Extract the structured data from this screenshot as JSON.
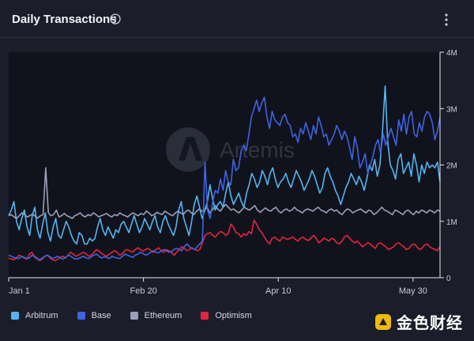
{
  "header": {
    "title": "Daily Transactions"
  },
  "watermark": {
    "text": "Artemis"
  },
  "brand": {
    "text": "金色财经",
    "color": "#f0b90b"
  },
  "chart_data": {
    "type": "line",
    "title": "Daily Transactions",
    "xlabel": "",
    "ylabel": "",
    "x_ticks": [
      "Jan 1",
      "Feb 20",
      "Apr 10",
      "May 30"
    ],
    "x_tick_days": [
      0,
      50,
      100,
      150
    ],
    "x_range": [
      0,
      160
    ],
    "y_ticks": [
      "0",
      "1M",
      "2M",
      "3M",
      "4M"
    ],
    "y_tick_values": [
      0,
      1,
      2,
      3,
      4
    ],
    "ylim": [
      0,
      4
    ],
    "y_unit": "millions",
    "grid": false,
    "legend_position": "bottom-left",
    "series": [
      {
        "name": "Arbitrum",
        "color": "#55b4f0",
        "values": [
          1.1,
          1.2,
          1.35,
          1.0,
          0.85,
          1.05,
          1.2,
          0.9,
          0.75,
          1.1,
          1.25,
          0.85,
          0.7,
          0.95,
          1.15,
          0.8,
          0.65,
          0.9,
          1.05,
          0.75,
          0.7,
          0.85,
          1.0,
          0.9,
          0.75,
          0.65,
          0.6,
          0.8,
          0.75,
          0.6,
          0.6,
          0.7,
          0.65,
          0.7,
          0.9,
          1.05,
          0.85,
          0.75,
          0.9,
          0.8,
          0.7,
          0.85,
          0.8,
          0.95,
          1.0,
          0.9,
          0.8,
          0.95,
          1.1,
          0.95,
          0.8,
          0.9,
          1.05,
          0.95,
          0.85,
          1.0,
          1.1,
          0.9,
          0.8,
          1.0,
          1.1,
          0.95,
          0.85,
          0.75,
          0.9,
          1.2,
          1.35,
          1.05,
          0.9,
          0.75,
          1.0,
          1.3,
          1.45,
          1.25,
          1.05,
          1.2,
          1.35,
          1.65,
          1.4,
          1.2,
          1.3,
          1.35,
          1.25,
          1.5,
          1.7,
          1.45,
          1.3,
          1.4,
          1.5,
          1.35,
          1.25,
          1.5,
          1.65,
          1.85,
          1.75,
          1.6,
          1.7,
          1.9,
          1.8,
          1.65,
          1.85,
          1.95,
          1.75,
          1.6,
          1.7,
          1.75,
          1.85,
          1.7,
          1.6,
          1.75,
          1.9,
          1.8,
          1.7,
          1.55,
          1.65,
          1.75,
          1.9,
          1.8,
          1.65,
          1.5,
          1.6,
          1.85,
          1.95,
          1.8,
          1.7,
          1.55,
          1.45,
          1.3,
          1.45,
          1.6,
          1.7,
          1.85,
          1.75,
          1.65,
          1.8,
          1.7,
          1.55,
          1.75,
          2.0,
          1.9,
          2.1,
          1.8,
          2.0,
          2.6,
          3.4,
          2.4,
          2.0,
          1.9,
          1.75,
          2.1,
          2.2,
          1.85,
          1.95,
          2.05,
          1.8,
          2.2,
          2.0,
          1.7,
          2.0,
          1.85,
          2.05,
          1.95,
          2.0,
          1.95,
          2.05,
          1.7
        ]
      },
      {
        "name": "Base",
        "color": "#3f63e3",
        "values": [
          0.4,
          0.38,
          0.36,
          0.35,
          0.34,
          0.38,
          0.36,
          0.34,
          0.35,
          0.4,
          0.37,
          0.33,
          0.32,
          0.35,
          0.38,
          0.4,
          0.37,
          0.34,
          0.36,
          0.38,
          0.35,
          0.33,
          0.36,
          0.4,
          0.38,
          0.35,
          0.33,
          0.34,
          0.36,
          0.38,
          0.35,
          0.34,
          0.37,
          0.4,
          0.42,
          0.38,
          0.35,
          0.37,
          0.36,
          0.34,
          0.38,
          0.36,
          0.35,
          0.34,
          0.38,
          0.42,
          0.4,
          0.38,
          0.36,
          0.4,
          0.42,
          0.45,
          0.43,
          0.4,
          0.42,
          0.45,
          0.48,
          0.45,
          0.44,
          0.47,
          0.5,
          0.48,
          0.45,
          0.46,
          0.5,
          0.52,
          0.5,
          0.48,
          0.55,
          0.6,
          0.55,
          0.52,
          0.5,
          0.55,
          0.6,
          0.65,
          2.05,
          1.2,
          1.05,
          1.35,
          1.55,
          1.5,
          1.75,
          1.55,
          1.9,
          1.7,
          1.65,
          2.1,
          1.9,
          1.95,
          2.25,
          2.35,
          2.25,
          2.55,
          2.85,
          3.0,
          3.15,
          2.95,
          3.1,
          3.2,
          2.85,
          2.65,
          2.95,
          2.8,
          2.75,
          2.7,
          2.85,
          2.9,
          2.75,
          2.7,
          2.5,
          2.55,
          2.4,
          2.65,
          2.55,
          2.75,
          2.6,
          2.45,
          2.7,
          2.55,
          2.85,
          2.7,
          2.5,
          2.55,
          2.35,
          2.45,
          2.55,
          2.7,
          2.6,
          2.45,
          2.6,
          2.5,
          2.3,
          2.1,
          2.5,
          2.3,
          1.95,
          2.05,
          2.2,
          1.85,
          2.0,
          2.15,
          2.35,
          2.45,
          2.2,
          2.55,
          2.35,
          2.5,
          2.65,
          2.5,
          2.35,
          2.8,
          2.6,
          2.9,
          2.55,
          2.85,
          2.95,
          2.55,
          2.5,
          2.75,
          2.6,
          2.85,
          2.95,
          2.9,
          2.75,
          2.45,
          2.6,
          2.85
        ]
      },
      {
        "name": "Ethereum",
        "color": "#9aa0b8",
        "values": [
          1.1,
          1.12,
          1.08,
          1.05,
          1.1,
          1.15,
          1.12,
          1.08,
          1.1,
          1.13,
          1.09,
          1.06,
          1.1,
          1.12,
          1.95,
          1.15,
          1.1,
          1.12,
          1.2,
          1.08,
          1.1,
          1.14,
          1.1,
          1.08,
          1.05,
          1.1,
          1.12,
          1.15,
          1.1,
          1.08,
          1.12,
          1.1,
          1.15,
          1.12,
          1.08,
          1.1,
          1.12,
          1.14,
          1.1,
          1.08,
          1.12,
          1.1,
          1.15,
          1.12,
          1.1,
          1.08,
          1.12,
          1.15,
          1.12,
          1.1,
          1.14,
          1.12,
          1.18,
          1.15,
          1.1,
          1.12,
          1.16,
          1.14,
          1.12,
          1.18,
          1.15,
          1.12,
          1.1,
          1.15,
          1.18,
          1.15,
          1.12,
          1.18,
          1.2,
          1.15,
          1.12,
          1.18,
          1.22,
          1.18,
          1.2,
          1.25,
          1.15,
          1.2,
          1.28,
          1.22,
          1.18,
          1.25,
          1.3,
          1.25,
          1.2,
          1.22,
          1.18,
          1.15,
          1.2,
          1.25,
          1.22,
          1.2,
          1.24,
          1.28,
          1.2,
          1.16,
          1.2,
          1.24,
          1.2,
          1.18,
          1.22,
          1.25,
          1.18,
          1.15,
          1.2,
          1.22,
          1.18,
          1.2,
          1.25,
          1.2,
          1.18,
          1.15,
          1.2,
          1.22,
          1.2,
          1.18,
          1.22,
          1.25,
          1.2,
          1.18,
          1.15,
          1.2,
          1.22,
          1.18,
          1.2,
          1.15,
          1.12,
          1.18,
          1.22,
          1.2,
          1.15,
          1.18,
          1.2,
          1.22,
          1.18,
          1.15,
          1.2,
          1.18,
          1.12,
          1.15,
          1.2,
          1.25,
          1.2,
          1.18,
          1.15,
          1.12,
          1.2,
          1.18,
          1.15,
          1.12,
          1.18,
          1.2,
          1.15,
          1.12,
          1.18,
          1.15,
          1.2,
          1.18,
          1.15,
          1.2,
          1.18,
          1.15,
          1.2,
          1.18
        ]
      },
      {
        "name": "Optimism",
        "color": "#e5233f",
        "values": [
          0.35,
          0.33,
          0.32,
          0.35,
          0.4,
          0.38,
          0.35,
          0.33,
          0.42,
          0.45,
          0.38,
          0.35,
          0.3,
          0.33,
          0.38,
          0.4,
          0.35,
          0.32,
          0.3,
          0.33,
          0.36,
          0.38,
          0.35,
          0.4,
          0.45,
          0.42,
          0.38,
          0.4,
          0.43,
          0.45,
          0.42,
          0.38,
          0.4,
          0.45,
          0.5,
          0.47,
          0.43,
          0.4,
          0.38,
          0.42,
          0.45,
          0.48,
          0.45,
          0.4,
          0.43,
          0.48,
          0.5,
          0.47,
          0.45,
          0.5,
          0.53,
          0.5,
          0.47,
          0.5,
          0.52,
          0.48,
          0.45,
          0.5,
          0.53,
          0.48,
          0.45,
          0.5,
          0.48,
          0.45,
          0.4,
          0.45,
          0.5,
          0.55,
          0.52,
          0.48,
          0.5,
          0.53,
          0.5,
          0.48,
          0.5,
          0.62,
          0.75,
          0.78,
          0.8,
          0.75,
          0.72,
          0.78,
          0.82,
          0.8,
          0.75,
          0.78,
          0.95,
          0.9,
          0.8,
          0.78,
          0.72,
          0.78,
          0.75,
          0.82,
          0.78,
          1.02,
          0.95,
          0.85,
          0.8,
          0.72,
          0.65,
          0.6,
          0.7,
          0.72,
          0.68,
          0.65,
          0.72,
          0.7,
          0.68,
          0.7,
          0.72,
          0.68,
          0.65,
          0.7,
          0.72,
          0.68,
          0.66,
          0.7,
          0.75,
          0.7,
          0.62,
          0.65,
          0.7,
          0.68,
          0.65,
          0.7,
          0.68,
          0.62,
          0.6,
          0.65,
          0.72,
          0.75,
          0.7,
          0.65,
          0.62,
          0.65,
          0.6,
          0.55,
          0.58,
          0.62,
          0.6,
          0.55,
          0.52,
          0.6,
          0.62,
          0.58,
          0.55,
          0.5,
          0.52,
          0.55,
          0.6,
          0.62,
          0.58,
          0.55,
          0.5,
          0.52,
          0.58,
          0.6,
          0.55,
          0.5,
          0.52,
          0.58,
          0.6,
          0.55,
          0.52,
          0.5,
          0.48,
          0.55
        ]
      }
    ]
  }
}
